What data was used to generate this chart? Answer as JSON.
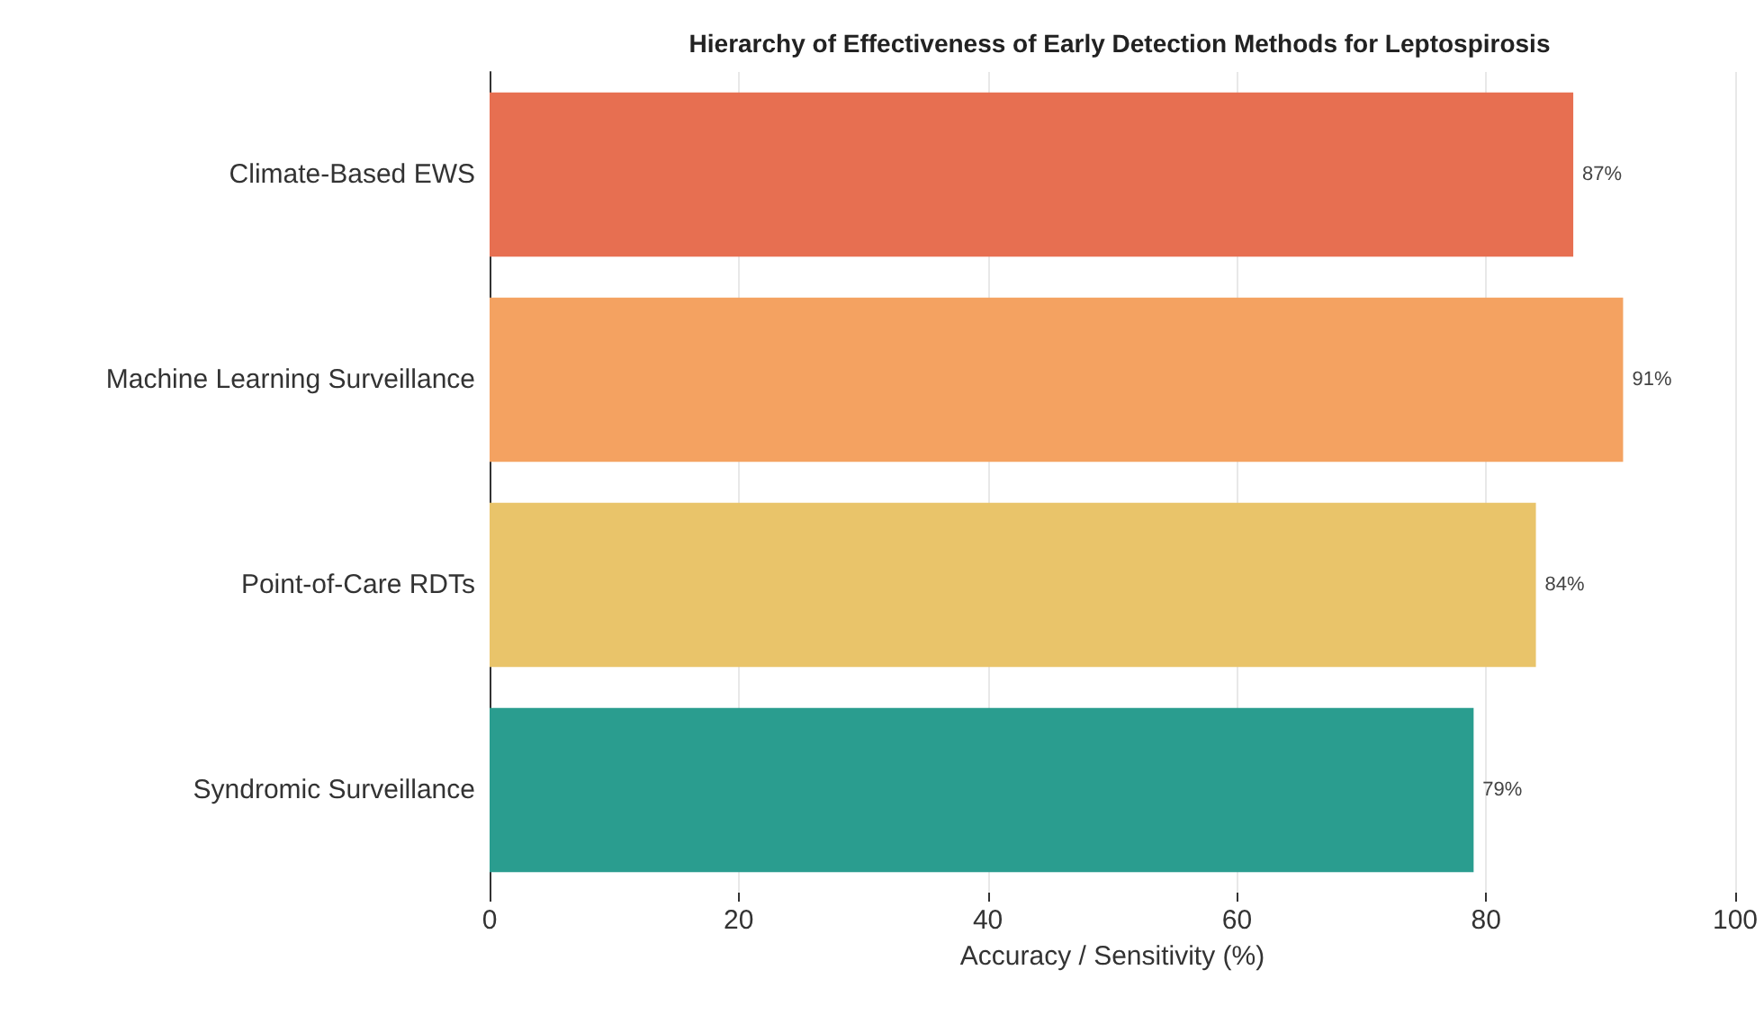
{
  "chart_data": {
    "type": "bar",
    "orientation": "horizontal",
    "title": "Hierarchy of Effectiveness of Early Detection Methods for Leptospirosis",
    "xlabel": "Accuracy / Sensitivity (%)",
    "categories": [
      "Climate-Based EWS",
      "Machine Learning Surveillance",
      "Point-of-Care RDTs",
      "Syndromic Surveillance"
    ],
    "values": [
      87,
      91,
      84,
      79
    ],
    "colors": [
      "#e76f51",
      "#f4a261",
      "#e9c46a",
      "#2a9d8f"
    ],
    "value_labels": [
      "87%",
      "91%",
      "84%",
      "79%"
    ],
    "xlim": [
      0,
      100
    ],
    "xticks": [
      0,
      20,
      40,
      60,
      80,
      100
    ],
    "grid": "x"
  }
}
